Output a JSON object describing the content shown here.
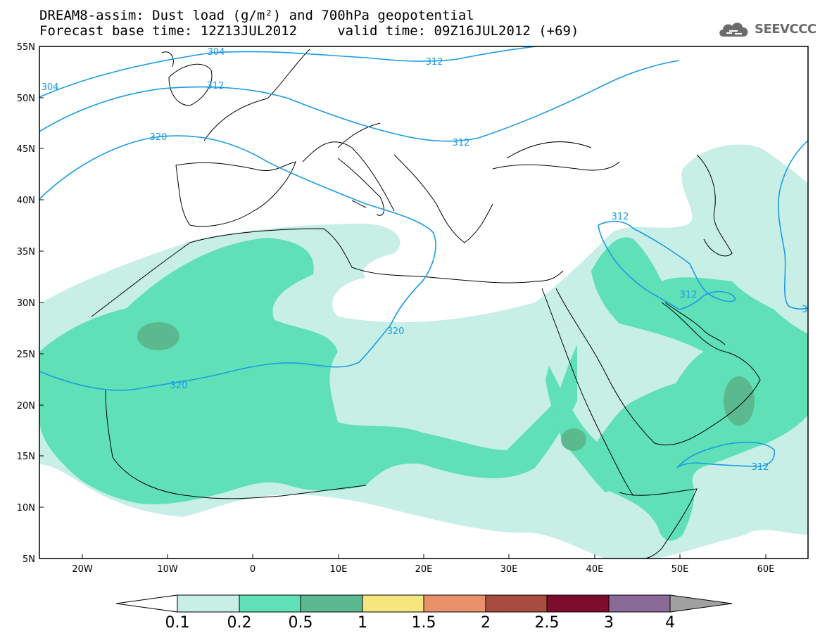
{
  "title": {
    "line1": "DREAM8-assim: Dust load (g/m²) and 700hPa geopotential",
    "line2": "Forecast base time: 12Z13JUL2012     valid time: 09Z16JUL2012 (+69)"
  },
  "logo": {
    "text": "SEEVCCC",
    "icon": "cloud-icon"
  },
  "axes": {
    "lon_ticks": [
      "20W",
      "10W",
      "0",
      "10E",
      "20E",
      "30E",
      "40E",
      "50E",
      "60E"
    ],
    "lat_ticks": [
      "55N",
      "50N",
      "45N",
      "40N",
      "35N",
      "30N",
      "25N",
      "20N",
      "15N",
      "10N",
      "5N"
    ]
  },
  "contour_labels": [
    "304",
    "304",
    "312",
    "312",
    "320",
    "320",
    "320",
    "312",
    "312",
    "312",
    "312",
    "3"
  ],
  "colorbar": {
    "labels": [
      "0.1",
      "0.2",
      "0.5",
      "1",
      "1.5",
      "2",
      "2.5",
      "3",
      "4"
    ],
    "colors": [
      "#c7efe6",
      "#5fe0b7",
      "#5bb990",
      "#f5e67e",
      "#e8916a",
      "#a84c40",
      "#7e0d2d",
      "#8a6a98",
      "#a0a0a0"
    ]
  },
  "colors": {
    "light_dust": "#c7efe6",
    "medium_dust": "#5fe0b7",
    "heavy_dust": "#5bb990",
    "contour_line": "#1a9be6",
    "coastline": "#000000"
  }
}
